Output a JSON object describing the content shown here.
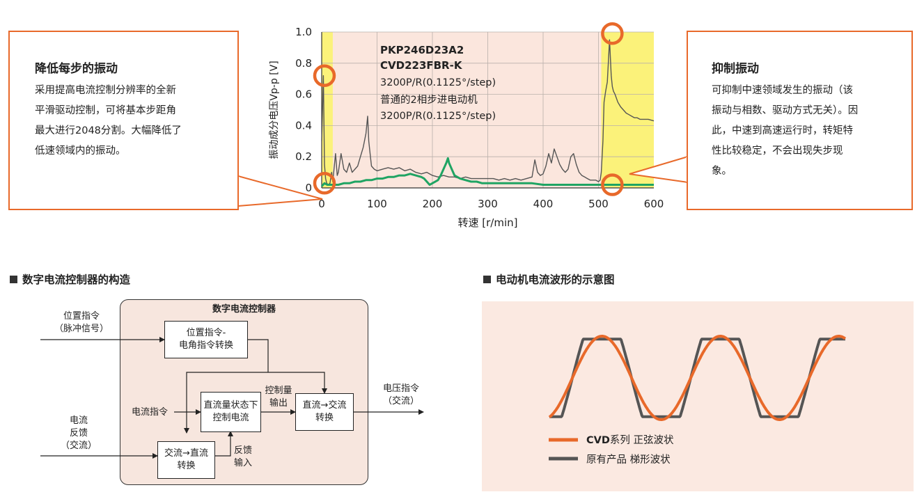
{
  "chart_data": {
    "type": "line",
    "x_ticks": [
      "0",
      "100",
      "200",
      "300",
      "400",
      "500",
      "600"
    ],
    "y_ticks": [
      "0",
      "0.2",
      "0.4",
      "0.6",
      "0.8",
      "1.0"
    ],
    "xlabel": "转速 [r/min]",
    "ylabel": "振动成分电压Vp-p [V]",
    "xlim": [
      0,
      600
    ],
    "ylim": [
      0,
      1.0
    ],
    "highlight_regions": [
      [
        0,
        20
      ],
      [
        505,
        600
      ]
    ],
    "series": [
      {
        "name": "普通的2相步进电动机 3200P/R(0.1125°/step)",
        "color": "#555555",
        "x": [
          0,
          3,
          5,
          7,
          9,
          12,
          15,
          18,
          20,
          25,
          28,
          30,
          35,
          40,
          45,
          50,
          55,
          60,
          65,
          70,
          75,
          80,
          83,
          85,
          88,
          90,
          95,
          100,
          110,
          120,
          130,
          140,
          150,
          160,
          170,
          180,
          190,
          200,
          210,
          220,
          230,
          240,
          250,
          260,
          270,
          280,
          290,
          300,
          310,
          320,
          330,
          340,
          350,
          360,
          370,
          380,
          385,
          390,
          395,
          400,
          405,
          410,
          415,
          420,
          425,
          430,
          435,
          440,
          445,
          450,
          455,
          460,
          465,
          470,
          475,
          480,
          485,
          490,
          495,
          500,
          503,
          505,
          508,
          510,
          513,
          516,
          520,
          523,
          525,
          527,
          530,
          535,
          540,
          545,
          550,
          555,
          560,
          565,
          570,
          575,
          580,
          590,
          600
        ],
        "y": [
          0.3,
          0.72,
          0.15,
          0.06,
          0.03,
          0.02,
          0.03,
          0.1,
          0.04,
          0.22,
          0.08,
          0.1,
          0.22,
          0.12,
          0.1,
          0.16,
          0.1,
          0.12,
          0.14,
          0.2,
          0.26,
          0.35,
          0.46,
          0.3,
          0.2,
          0.14,
          0.12,
          0.11,
          0.12,
          0.13,
          0.12,
          0.13,
          0.11,
          0.12,
          0.1,
          0.09,
          0.1,
          0.08,
          0.07,
          0.08,
          0.07,
          0.07,
          0.06,
          0.07,
          0.06,
          0.06,
          0.06,
          0.06,
          0.06,
          0.05,
          0.06,
          0.05,
          0.06,
          0.05,
          0.06,
          0.07,
          0.18,
          0.1,
          0.08,
          0.09,
          0.14,
          0.22,
          0.16,
          0.25,
          0.2,
          0.15,
          0.12,
          0.1,
          0.12,
          0.2,
          0.22,
          0.15,
          0.1,
          0.08,
          0.07,
          0.06,
          0.05,
          0.05,
          0.05,
          0.04,
          0.05,
          0.1,
          0.3,
          0.55,
          0.62,
          0.68,
          0.95,
          0.72,
          0.65,
          0.62,
          0.6,
          0.55,
          0.52,
          0.5,
          0.48,
          0.47,
          0.46,
          0.45,
          0.45,
          0.44,
          0.44,
          0.44,
          0.43
        ]
      },
      {
        "name": "CVD223FBR-K",
        "color": "#1fa463",
        "x": [
          0,
          5,
          10,
          15,
          20,
          30,
          40,
          50,
          60,
          70,
          80,
          90,
          100,
          110,
          120,
          130,
          140,
          150,
          160,
          170,
          180,
          185,
          190,
          195,
          200,
          210,
          215,
          220,
          225,
          228,
          230,
          235,
          240,
          250,
          260,
          270,
          280,
          290,
          300,
          320,
          340,
          360,
          380,
          400,
          420,
          440,
          460,
          480,
          500,
          510,
          520,
          530,
          540,
          550,
          560,
          570,
          580,
          590,
          600
        ],
        "y": [
          0.01,
          0.03,
          0.02,
          0.02,
          0.02,
          0.02,
          0.03,
          0.03,
          0.04,
          0.04,
          0.05,
          0.05,
          0.06,
          0.06,
          0.07,
          0.07,
          0.08,
          0.08,
          0.09,
          0.08,
          0.07,
          0.06,
          0.04,
          0.02,
          0.03,
          0.05,
          0.08,
          0.12,
          0.16,
          0.19,
          0.16,
          0.12,
          0.08,
          0.06,
          0.05,
          0.04,
          0.04,
          0.03,
          0.03,
          0.03,
          0.03,
          0.03,
          0.03,
          0.02,
          0.02,
          0.02,
          0.02,
          0.02,
          0.02,
          0.02,
          0.02,
          0.02,
          0.02,
          0.02,
          0.02,
          0.02,
          0.02,
          0.02,
          0.02
        ]
      }
    ],
    "annotations": {
      "model1": "PKP246D23A2",
      "model2": "CVD223FBR-K",
      "model_res": "3200P/R(0.1125°/step)",
      "ordinary_name": "普通的2相步进电动机",
      "ordinary_res": "3200P/R(0.1125°/step)"
    }
  },
  "callout_left": {
    "title": "降低每步的振动",
    "lines": [
      "采用提高电流控制分辨率的全新",
      "平滑驱动控制，可将基本步距角",
      "最大进行2048分割。大幅降低了",
      "低速领域内的振动。"
    ]
  },
  "callout_right": {
    "title": "抑制振动",
    "lines": [
      "可抑制中速领域发生的振动（该",
      "振动与相数、驱动方式无关）。因",
      "此，中速到高速运行时，转矩特",
      "性比较稳定，不会出现失步现",
      "象。"
    ]
  },
  "diagram": {
    "section_title": "数字电流控制器的构造",
    "controller_title": "数字电流控制器",
    "pos_cmd": [
      "位置指令",
      "（脉冲信号）"
    ],
    "box1": [
      "位置指令-",
      "电角指令转换"
    ],
    "current_cmd": "电流指令",
    "box2": [
      "直流量状态下",
      "控制电流"
    ],
    "ctrl_output": [
      "控制量",
      "输出"
    ],
    "box3": [
      "直流→交流",
      "转换"
    ],
    "voltage_cmd": [
      "电压指令",
      "（交流）"
    ],
    "current_fb": [
      "电流",
      "反馈",
      "（交流）"
    ],
    "box4": [
      "交流→直流",
      "转换"
    ],
    "fb_input": [
      "反馈",
      "输入"
    ]
  },
  "waveform": {
    "section_title": "电动机电流波形的示意图",
    "legend_cvd_bold": "CVD",
    "legend_cvd_rest": "系列  正弦波状",
    "legend_orig": "原有产品  梯形波状",
    "colors": {
      "sine": "#e8692a",
      "trapezoid": "#555555",
      "panel": "#fbe9e1"
    }
  }
}
